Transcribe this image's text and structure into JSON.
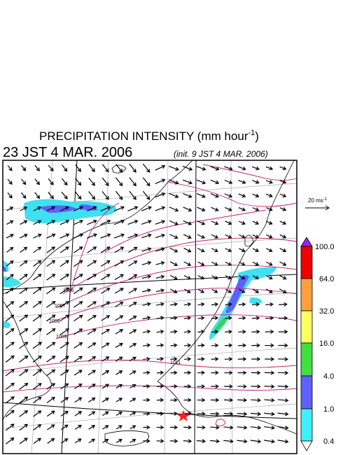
{
  "title": {
    "main": "PRECIPITATION INTENSITY (mm hour",
    "sup": "-1",
    "close": ")"
  },
  "valid_time": "23 JST 4 MAR. 2006",
  "init_time": "(init. 9 JST 4 MAR. 2006)",
  "reference_vector": {
    "label": "20 ms",
    "sup": "-1"
  },
  "isobar_labels": [
    "1006",
    "1007",
    "1008",
    "1009",
    "1011"
  ],
  "colorbar": {
    "labels": [
      "100.0",
      "64.0",
      "32.0",
      "16.0",
      "4.0",
      "1.0",
      "0.4"
    ]
  }
}
